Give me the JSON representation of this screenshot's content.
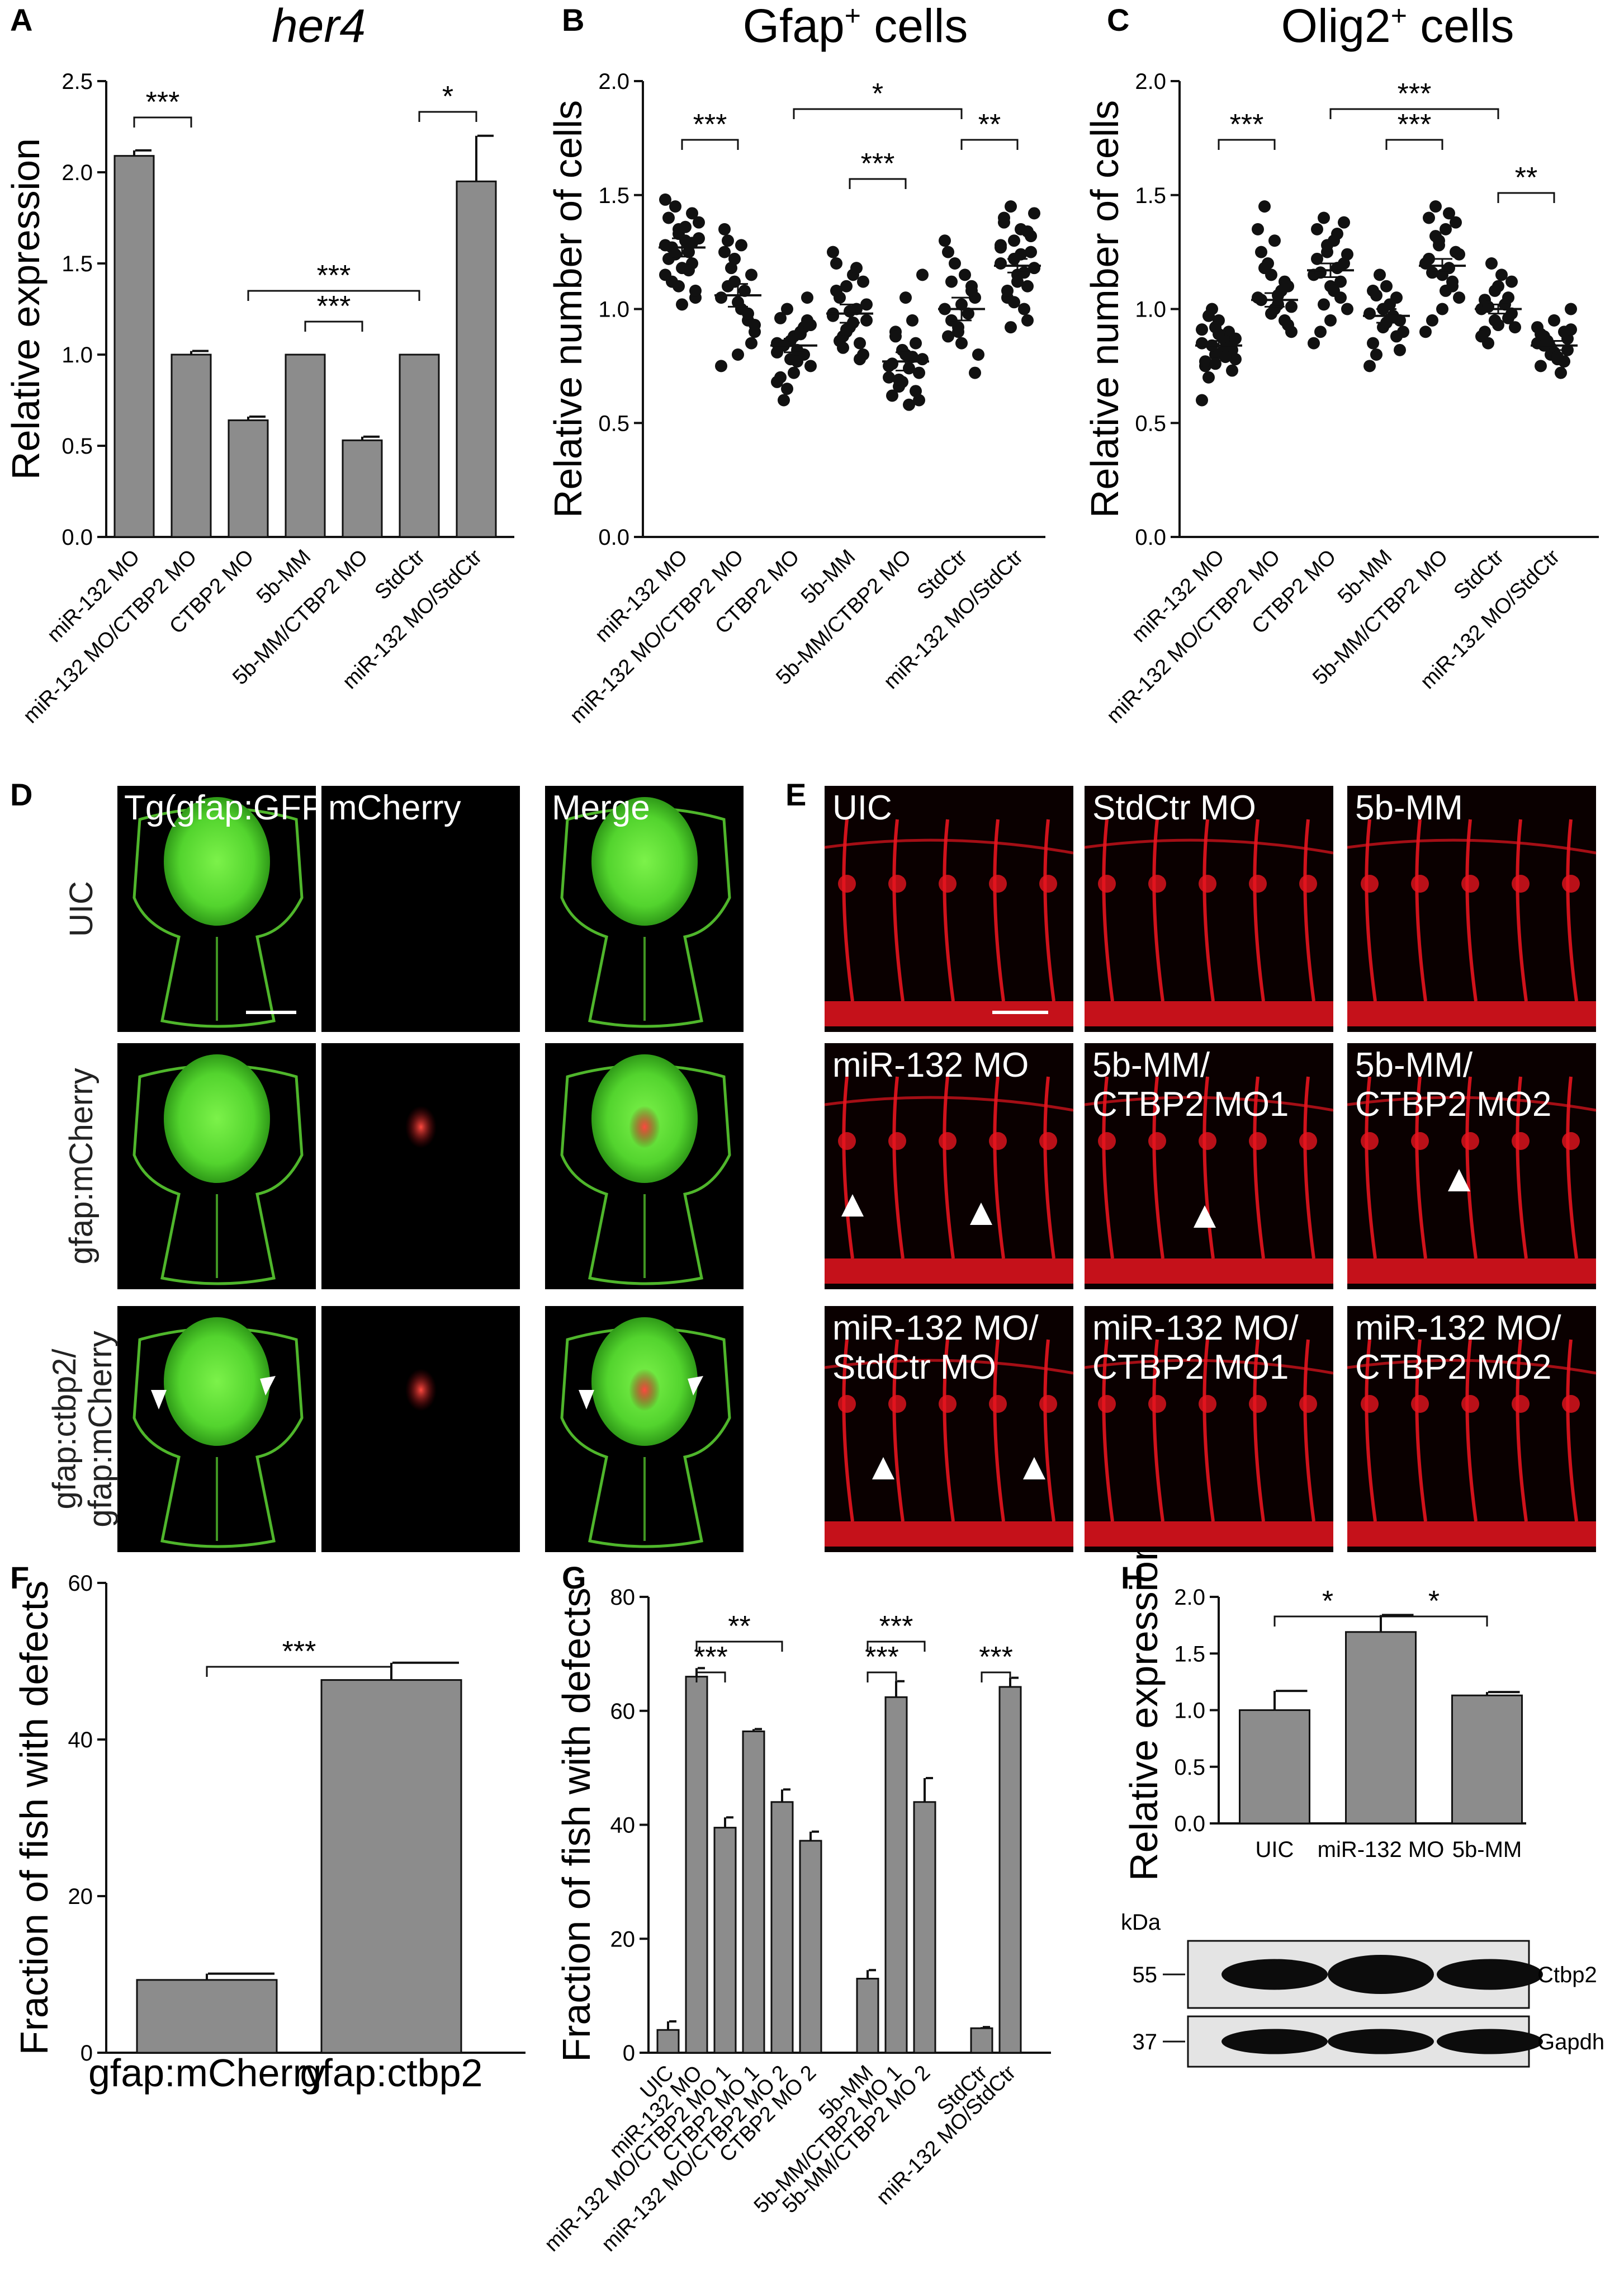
{
  "colors": {
    "bar": "#8c8c8c",
    "edge": "#111111",
    "dot": "#111111",
    "gfp": "#5dd633",
    "mcherry": "#e6141e"
  },
  "panel_labels": [
    "A",
    "B",
    "C",
    "D",
    "E",
    "F",
    "G",
    "H"
  ],
  "chart_data": [
    {
      "id": "A",
      "type": "bar",
      "title": "her4",
      "xlabel": "",
      "ylabel": "Relative expression",
      "ylim": [
        0,
        2.5
      ],
      "yticks": [
        0.0,
        0.5,
        1.0,
        1.5,
        2.0,
        2.5
      ],
      "categories": [
        "miR-132 MO",
        "miR-132 MO/CTBP2 MO",
        "CTBP2 MO",
        "5b-MM",
        "5b-MM/CTBP2 MO",
        "StdCtr",
        "miR-132 MO/StdCtr"
      ],
      "values": [
        2.09,
        1.0,
        0.64,
        1.0,
        0.53,
        1.0,
        1.95
      ],
      "errors": [
        0.03,
        0.02,
        0.02,
        0.0,
        0.02,
        0.0,
        0.25
      ],
      "significance": [
        {
          "from": 0,
          "to": 1,
          "label": "***"
        },
        {
          "from": 2,
          "to": 5,
          "label": "***"
        },
        {
          "from": 3,
          "to": 4,
          "label": "***"
        },
        {
          "from": 5,
          "to": 6,
          "label": "*"
        }
      ]
    },
    {
      "id": "B",
      "type": "scatter",
      "title": "Gfap",
      "title_sup": "+",
      "title_suffix": " cells",
      "xlabel": "",
      "ylabel": "Relative number of cells",
      "ylim": [
        0,
        2.0
      ],
      "yticks": [
        0.0,
        0.5,
        1.0,
        1.5,
        2.0
      ],
      "categories": [
        "miR-132 MO",
        "miR-132 MO/CTBP2 MO",
        "CTBP2 MO",
        "5b-MM",
        "5b-MM/CTBP2 MO",
        "StdCtr",
        "miR-132 MO/StdCtr"
      ],
      "points": [
        [
          1.28,
          1.35,
          1.42,
          1.22,
          1.18,
          1.05,
          1.12,
          1.3,
          1.38,
          1.45,
          1.25,
          1.15,
          1.33,
          1.2,
          1.4,
          1.02,
          1.08,
          1.27,
          1.36,
          1.31,
          1.24,
          1.17,
          1.48,
          1.1,
          1.29
        ],
        [
          1.05,
          1.12,
          0.95,
          1.25,
          0.8,
          1.15,
          1.3,
          1.0,
          0.9,
          1.18,
          1.08,
          0.75,
          1.22,
          0.98,
          1.35,
          1.03,
          0.85,
          1.1,
          1.28,
          0.93
        ],
        [
          0.85,
          0.78,
          0.92,
          0.7,
          0.88,
          0.95,
          0.6,
          0.82,
          0.75,
          1.0,
          0.9,
          0.68,
          0.86,
          0.8,
          0.96,
          0.72,
          1.05,
          0.84,
          0.77,
          0.93,
          0.65,
          0.89,
          0.81
        ],
        [
          0.98,
          1.1,
          0.85,
          1.2,
          0.92,
          0.8,
          1.05,
          1.15,
          0.95,
          0.88,
          1.0,
          1.25,
          0.9,
          0.78,
          1.08,
          0.99,
          1.12,
          0.86,
          0.94,
          1.02,
          0.83,
          1.18,
          0.97,
          0.91
        ],
        [
          0.75,
          0.68,
          0.85,
          0.62,
          0.8,
          0.72,
          0.9,
          0.58,
          0.78,
          0.66,
          0.95,
          0.7,
          0.82,
          0.64,
          0.76,
          1.05,
          0.6,
          0.88,
          0.74,
          1.15,
          0.69,
          0.79
        ],
        [
          1.0,
          0.92,
          1.1,
          1.25,
          0.85,
          1.05,
          0.95,
          1.15,
          0.8,
          1.2,
          0.98,
          1.3,
          0.9,
          1.08,
          0.88,
          1.02,
          0.72,
          1.12
        ],
        [
          1.2,
          1.3,
          1.1,
          1.4,
          1.15,
          1.25,
          1.05,
          1.35,
          1.18,
          1.45,
          1.0,
          1.28,
          1.22,
          0.95,
          1.38,
          1.12,
          1.32,
          1.08,
          1.24,
          1.42,
          0.92,
          1.16,
          1.27,
          1.03,
          1.34
        ]
      ],
      "means": [
        1.27,
        1.06,
        0.84,
        0.98,
        0.77,
        1.0,
        1.19
      ],
      "sems": [
        0.04,
        0.05,
        0.03,
        0.04,
        0.04,
        0.05,
        0.03
      ],
      "significance": [
        {
          "from": 0,
          "to": 1,
          "label": "***"
        },
        {
          "from": 2,
          "to": 5,
          "label": "*"
        },
        {
          "from": 3,
          "to": 4,
          "label": "***"
        },
        {
          "from": 5,
          "to": 6,
          "label": "**"
        }
      ]
    },
    {
      "id": "C",
      "type": "scatter",
      "title": "Olig2",
      "title_sup": "+",
      "title_suffix": " cells",
      "xlabel": "",
      "ylabel": "Relative number of cells",
      "ylim": [
        0,
        2.0
      ],
      "yticks": [
        0.0,
        0.5,
        1.0,
        1.5,
        2.0
      ],
      "categories": [
        "miR-132 MO",
        "miR-132 MO/CTBP2 MO",
        "CTBP2 MO",
        "5b-MM",
        "5b-MM/CTBP2 MO",
        "StdCtr",
        "miR-132 MO/StdCtr"
      ],
      "points": [
        [
          0.85,
          0.8,
          0.9,
          0.75,
          0.95,
          0.82,
          0.7,
          0.88,
          0.78,
          1.0,
          0.86,
          0.6,
          0.92,
          0.83,
          0.77,
          0.89,
          0.73,
          0.97,
          0.81,
          0.87,
          0.84,
          0.79,
          0.91,
          0.76
        ],
        [
          1.05,
          1.15,
          0.95,
          1.25,
          1.0,
          1.1,
          1.45,
          1.02,
          0.9,
          1.2,
          1.08,
          1.35,
          0.98,
          1.12,
          1.04,
          1.3,
          0.93,
          1.18,
          1.06,
          1.01
        ],
        [
          1.15,
          1.25,
          1.05,
          1.35,
          1.1,
          1.2,
          0.9,
          1.3,
          1.0,
          1.4,
          1.18,
          0.85,
          1.28,
          1.12,
          1.22,
          0.95,
          1.38,
          1.16,
          1.08,
          1.24,
          1.02,
          1.33
        ],
        [
          0.98,
          0.92,
          1.05,
          0.85,
          1.1,
          0.95,
          0.8,
          1.02,
          0.9,
          1.15,
          0.97,
          0.75,
          1.0,
          0.88,
          1.08,
          0.94,
          0.82,
          1.06
        ],
        [
          1.2,
          1.3,
          1.1,
          1.4,
          1.15,
          1.25,
          0.95,
          1.35,
          1.05,
          1.45,
          1.18,
          0.9,
          1.28,
          1.12,
          1.22,
          1.0,
          1.38,
          1.16,
          1.08,
          1.24,
          1.32,
          1.42
        ],
        [
          1.0,
          0.95,
          1.05,
          0.9,
          1.1,
          0.98,
          0.85,
          1.15,
          0.92,
          1.2,
          1.02,
          0.88,
          1.08,
          0.96,
          1.04,
          0.93,
          1.12,
          1.01
        ],
        [
          0.85,
          0.8,
          0.9,
          0.75,
          0.95,
          0.82,
          0.88,
          0.78,
          1.0,
          0.86,
          0.72,
          0.92,
          0.83,
          0.77,
          0.89,
          0.81,
          0.87,
          0.84,
          0.79,
          0.91
        ]
      ],
      "means": [
        0.84,
        1.04,
        1.17,
        0.97,
        1.19,
        1.0,
        0.84
      ],
      "sems": [
        0.02,
        0.03,
        0.03,
        0.03,
        0.03,
        0.02,
        0.02
      ],
      "significance": [
        {
          "from": 0,
          "to": 1,
          "label": "***"
        },
        {
          "from": 2,
          "to": 5,
          "label": "***"
        },
        {
          "from": 3,
          "to": 4,
          "label": "***"
        },
        {
          "from": 5,
          "to": 6,
          "label": "**"
        }
      ]
    },
    {
      "id": "F",
      "type": "bar",
      "title": "",
      "xlabel": "",
      "ylabel": "Fraction of fish with defects",
      "ylim": [
        0,
        60
      ],
      "yticks": [
        0,
        20,
        40,
        60
      ],
      "categories": [
        "gfap:mCherry",
        "gfap:ctbp2"
      ],
      "values": [
        9.3,
        47.6
      ],
      "errors": [
        0.8,
        2.2
      ],
      "significance": [
        {
          "from": 0,
          "to": 1,
          "label": "***"
        }
      ]
    },
    {
      "id": "G",
      "type": "bar",
      "title": "",
      "xlabel": "",
      "ylabel": "Fraction of fish with defects",
      "ylim": [
        0,
        80
      ],
      "yticks": [
        0,
        20,
        40,
        60,
        80
      ],
      "categories": [
        "UIC",
        "miR-132 MO",
        "miR-132 MO/CTBP2 MO 1",
        "CTBP2 MO 1",
        "miR-132 MO/CTBP2 MO 2",
        "CTBP2 MO 2",
        "",
        "5b-MM",
        "5b-MM/CTBP2 MO 1",
        "5b-MM/CTBP2 MO 2",
        "",
        "StdCtr",
        "miR-132 MO/StdCtr"
      ],
      "values": [
        4.0,
        66.0,
        39.5,
        56.4,
        44.0,
        37.2,
        null,
        13.0,
        62.4,
        44.0,
        null,
        4.3,
        64.2
      ],
      "errors": [
        1.5,
        1.5,
        1.8,
        0.4,
        2.2,
        1.6,
        null,
        1.5,
        2.8,
        4.2,
        null,
        0.2,
        1.6
      ],
      "significance": [
        {
          "from": 1,
          "to": 2,
          "label": "***"
        },
        {
          "from": 1,
          "to": 4,
          "label": "**"
        },
        {
          "from": 7,
          "to": 8,
          "label": "***"
        },
        {
          "from": 7,
          "to": 9,
          "label": "***"
        },
        {
          "from": 11,
          "to": 12,
          "label": "***"
        }
      ]
    },
    {
      "id": "H",
      "type": "bar",
      "title": "",
      "xlabel": "",
      "ylabel": "Relative expression",
      "ylim": [
        0,
        2.0
      ],
      "yticks": [
        0.0,
        0.5,
        1.0,
        1.5,
        2.0
      ],
      "categories": [
        "UIC",
        "miR-132 MO",
        "5b-MM"
      ],
      "values": [
        1.0,
        1.69,
        1.13
      ],
      "errors": [
        0.17,
        0.15,
        0.03
      ],
      "significance": [
        {
          "from": 0,
          "to": 1,
          "label": "*"
        },
        {
          "from": 1,
          "to": 2,
          "label": "*"
        }
      ]
    }
  ],
  "panel_D": {
    "column_labels": [
      "Tg(gfap:GFP)",
      "mCherry",
      "Merge"
    ],
    "row_labels": [
      "UIC",
      "gfap:mCherry",
      "gfap:ctbp2/\ngfap:mCherry"
    ]
  },
  "panel_E": {
    "labels": [
      "UIC",
      "StdCtr MO",
      "5b-MM",
      "miR-132 MO",
      "5b-MM/\nCTBP2 MO1",
      "5b-MM/\nCTBP2 MO2",
      "miR-132 MO/\nStdCtr MO",
      "miR-132 MO/\nCTBP2 MO1",
      "miR-132 MO/\nCTBP2 MO2"
    ]
  },
  "panel_H_blot": {
    "kda_label": "kDa",
    "markers": [
      "55",
      "37"
    ],
    "bands": [
      "Ctbp2",
      "Gapdh"
    ]
  }
}
